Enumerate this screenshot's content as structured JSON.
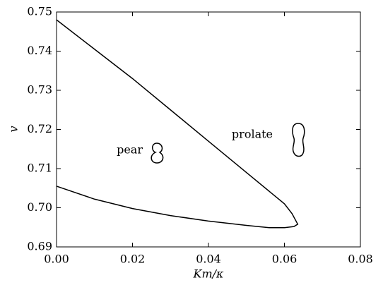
{
  "chart_data": {
    "type": "line",
    "xlabel": "Km/κ",
    "ylabel": "v",
    "annotations": [
      "pear",
      "prolate"
    ],
    "x": [
      0,
      0.01,
      0.02,
      0.03,
      0.04,
      0.05,
      0.06,
      0.062,
      0.0635,
      0.0625,
      0.06,
      0.056,
      0.05,
      0.04,
      0.03,
      0.02,
      0.01,
      0
    ],
    "series": [
      {
        "color": "#000000",
        "values": [
          0.748,
          0.7405,
          0.733,
          0.725,
          0.717,
          0.709,
          0.701,
          0.6985,
          0.6958,
          0.6952,
          0.6949,
          0.6949,
          0.6955,
          0.6966,
          0.698,
          0.6998,
          0.7022,
          0.7055
        ]
      }
    ],
    "xlim": [
      0,
      0.08
    ],
    "ylim": [
      0.69,
      0.75
    ],
    "xticks": [
      {
        "value": 0,
        "label": "0.00"
      },
      0.02,
      0.04,
      0.06,
      0.08
    ],
    "yticks": [
      0.69,
      {
        "value": 0.7,
        "label": "0.70"
      },
      0.71,
      0.72,
      0.73,
      0.74,
      0.75
    ]
  }
}
